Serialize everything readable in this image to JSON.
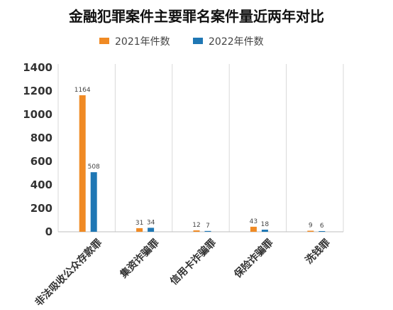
{
  "chart_data": {
    "type": "bar",
    "title": "金融犯罪案件主要罪名案件量近两年对比",
    "categories": [
      "非法吸收公众存款罪",
      "集资诈骗罪",
      "信用卡诈骗罪",
      "保险诈骗罪",
      "洗钱罪"
    ],
    "series": [
      {
        "name": "2021年件数",
        "values": [
          1164,
          31,
          12,
          43,
          9
        ],
        "color": "#f08a24"
      },
      {
        "name": "2022年件数",
        "values": [
          508,
          34,
          7,
          18,
          6
        ],
        "color": "#1f77b4"
      }
    ],
    "ylim": [
      0,
      1400
    ],
    "yticks": [
      0,
      200,
      400,
      600,
      800,
      1000,
      1200,
      1400
    ],
    "grid": "vertical-separators",
    "legend": "top-center",
    "xlabel": "",
    "ylabel": ""
  }
}
